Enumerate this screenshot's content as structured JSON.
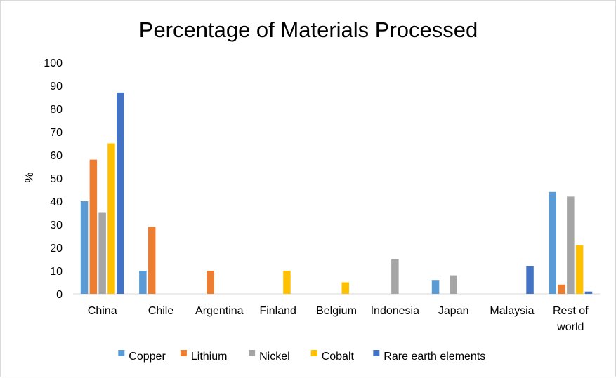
{
  "chart_data": {
    "type": "bar",
    "title": "Percentage of Materials Processed",
    "ylabel": "%",
    "xlabel": "",
    "ylim": [
      0,
      100
    ],
    "yticks": [
      0,
      10,
      20,
      30,
      40,
      50,
      60,
      70,
      80,
      90,
      100
    ],
    "grid": false,
    "legend_position": "bottom",
    "categories": [
      [
        "China"
      ],
      [
        "Chile"
      ],
      [
        "Argentina"
      ],
      [
        "Finland"
      ],
      [
        "Belgium"
      ],
      [
        "Indonesia"
      ],
      [
        "Japan"
      ],
      [
        "Malaysia"
      ],
      [
        "Rest of",
        "world"
      ]
    ],
    "series": [
      {
        "name": "Copper",
        "color": "#5B9BD5",
        "values": [
          40,
          10,
          0,
          0,
          0,
          0,
          6,
          0,
          44
        ]
      },
      {
        "name": "Lithium",
        "color": "#ED7D31",
        "values": [
          58,
          29,
          10,
          0,
          0,
          0,
          0,
          0,
          4
        ]
      },
      {
        "name": "Nickel",
        "color": "#A5A5A5",
        "values": [
          35,
          0,
          0,
          0,
          0,
          15,
          8,
          0,
          42
        ]
      },
      {
        "name": "Cobalt",
        "color": "#FFC000",
        "values": [
          65,
          0,
          0,
          10,
          5,
          0,
          0,
          0,
          21
        ]
      },
      {
        "name": "Rare earth elements",
        "color": "#4472C4",
        "values": [
          87,
          0,
          0,
          0,
          0,
          0,
          0,
          12,
          1
        ]
      }
    ]
  }
}
